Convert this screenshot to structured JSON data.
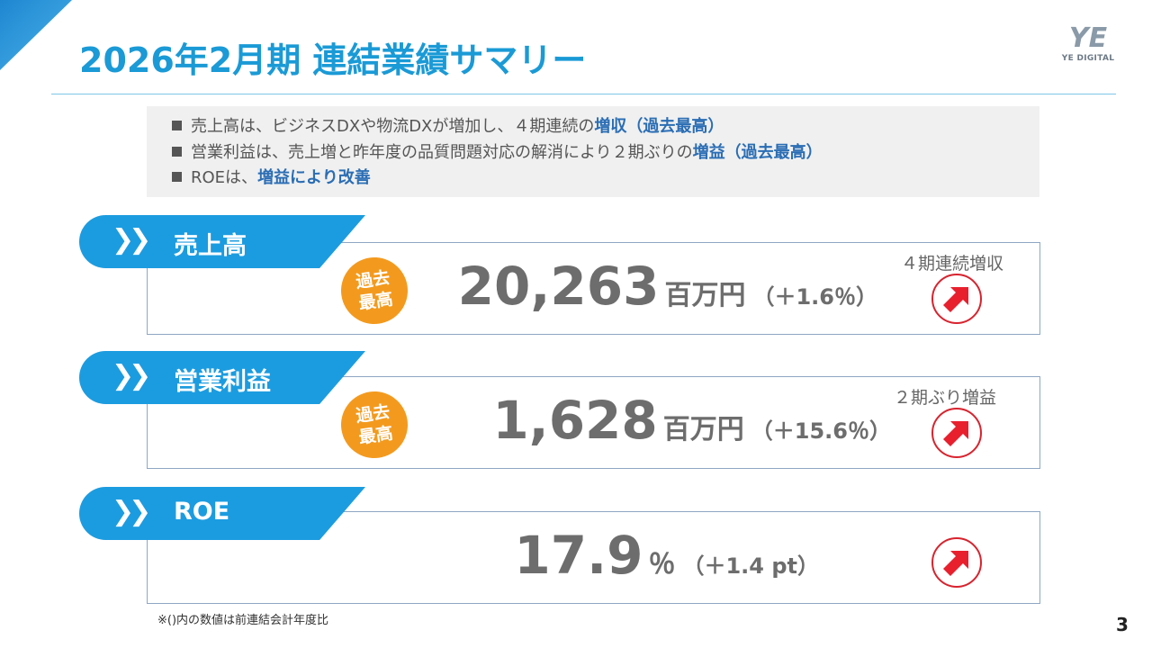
{
  "header": {
    "title": "2026年2月期 連結業績サマリー",
    "logo_text": "YE DIGITAL",
    "logo_mark": "YE"
  },
  "summary": [
    {
      "text": "売上高は、ビジネスDXや物流DXが増加し、４期連続の",
      "highlight": "増収（過去最高）"
    },
    {
      "text": "営業利益は、売上増と昨年度の品質問題対応の解消により２期ぶりの",
      "highlight": "増益（過去最高）"
    },
    {
      "text": "ROEは、",
      "highlight": "増益により改善"
    }
  ],
  "metrics": [
    {
      "label": "売上高",
      "badge": "過去最高",
      "value": "20,263",
      "unit": "百万円",
      "change": "（＋1.6％）",
      "note": "４期連続増収",
      "trend": "up"
    },
    {
      "label": "営業利益",
      "badge": "過去最高",
      "value": "1,628",
      "unit": "百万円",
      "change": "（＋15.6％）",
      "note": "２期ぶり増益",
      "trend": "up"
    },
    {
      "label": "ROE",
      "badge": "",
      "value": "17.9",
      "unit": "％",
      "change": "（＋1.4 pt）",
      "note": "",
      "trend": "up"
    }
  ],
  "colors": {
    "title": "#1a9ad6",
    "banner": "#1c9ce0",
    "badge": "#f39a1e",
    "arrow": "#d8232e",
    "highlight": "#2a6db4"
  },
  "footnote": "※()内の数値は前連結会計年度比",
  "page_number": "3"
}
